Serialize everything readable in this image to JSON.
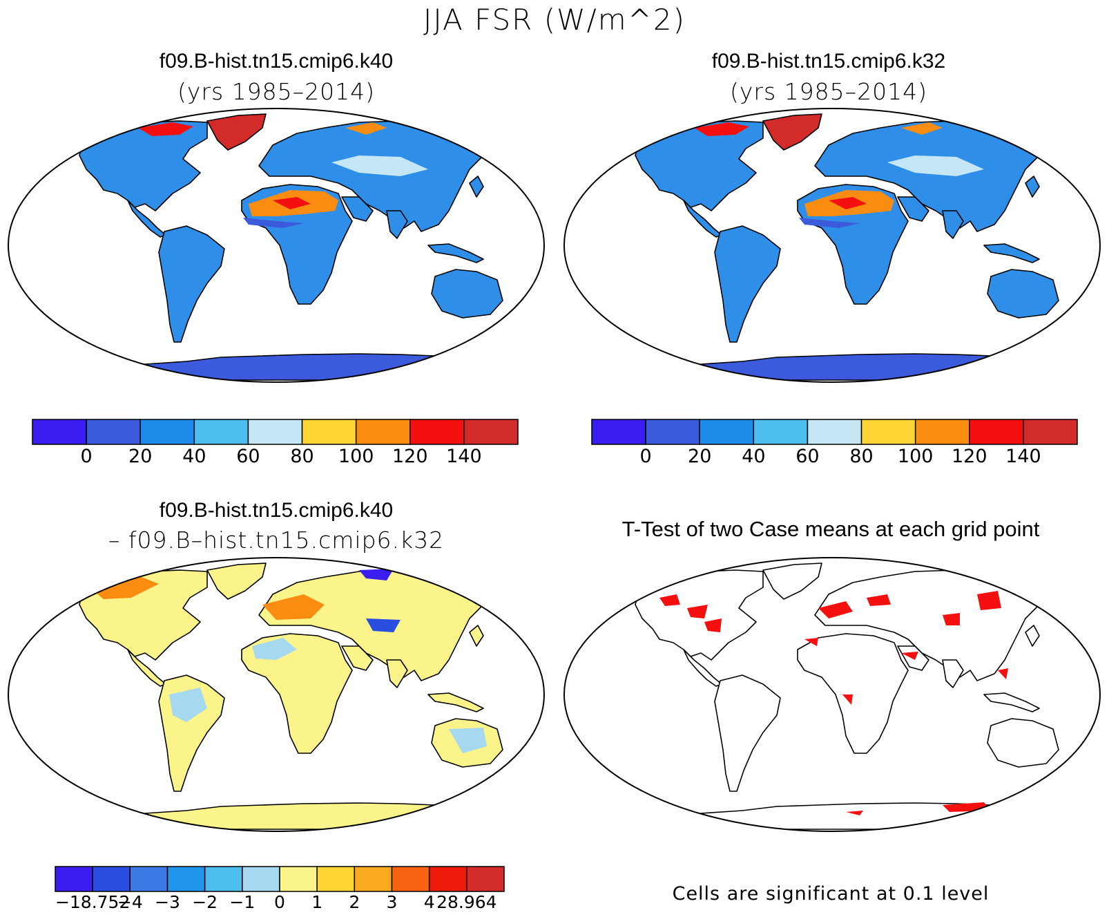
{
  "title": "JJA FSR (W/m^2)",
  "panels": [
    {
      "title": "f09.B-hist.tn15.cmip6.k40",
      "subtitle": "(yrs 1985–2014)"
    },
    {
      "title": "f09.B-hist.tn15.cmip6.k32",
      "subtitle": "(yrs 1985–2014)"
    },
    {
      "title": "f09.B-hist.tn15.cmip6.k40",
      "subtitle": "– f09.B–hist.tn15.cmip6.k32"
    },
    {
      "title": "T-Test of two Case means at each grid point",
      "note": "Cells are significant at 0.1 level"
    }
  ],
  "colorbars": {
    "absolute": {
      "colors": [
        "#3a1df0",
        "#3b5bdc",
        "#1f8bea",
        "#4ebeef",
        "#c5e6f5",
        "#fcd535",
        "#fb8c12",
        "#f51010",
        "#d32a2a"
      ],
      "labels": [
        "0",
        "20",
        "40",
        "60",
        "80",
        "100",
        "120",
        "140"
      ]
    },
    "difference": {
      "colors": [
        "#3a1df0",
        "#2a4ee0",
        "#3b7be6",
        "#1f95ec",
        "#4ebeef",
        "#a6d8f0",
        "#fbf48a",
        "#fcd535",
        "#fbab20",
        "#f86414",
        "#ef1a0c",
        "#d32a2a"
      ],
      "labels": [
        "−18.752",
        "−4",
        "−3",
        "−2",
        "−1",
        "0",
        "1",
        "2",
        "3",
        "4",
        "28.964"
      ]
    }
  },
  "map_colors": {
    "land_base": "#2f8fe8",
    "sahara": "#fb8c12",
    "greenland": "#d32a2a",
    "antarctica": "#3b5bdc",
    "diff_land": "#fbf48a",
    "significant": "#f51010"
  }
}
